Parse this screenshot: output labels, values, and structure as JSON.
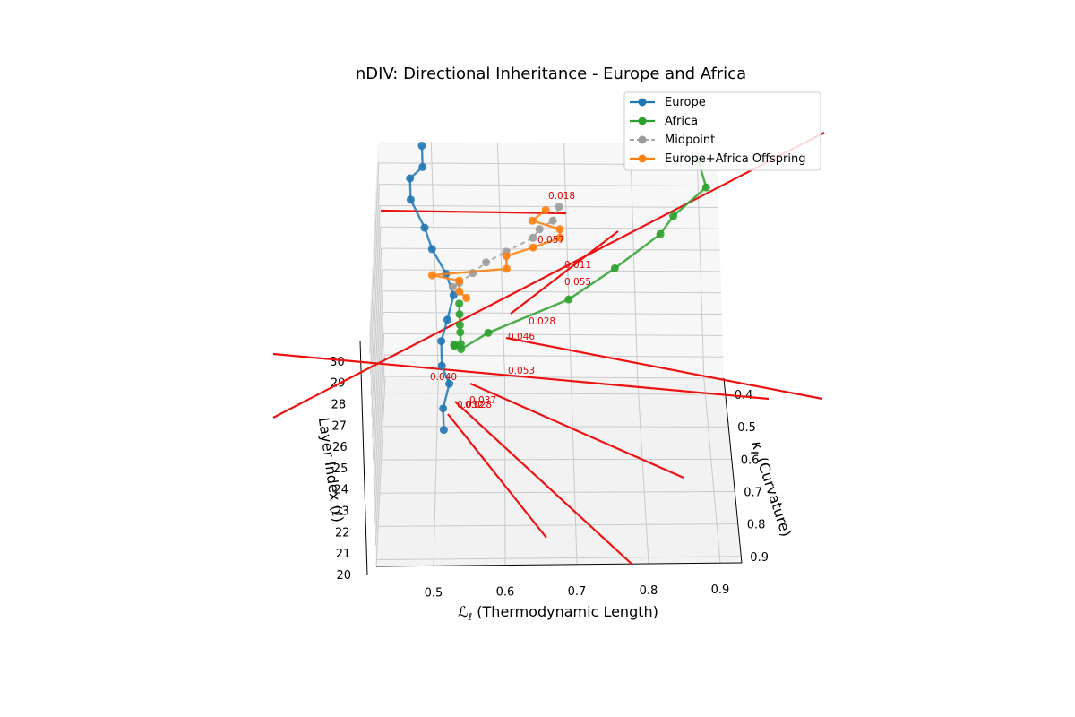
{
  "chart_data": {
    "type": "line",
    "projection": "3d",
    "title": "nDIV: Directional Inheritance - Europe and Africa",
    "xlabel_math": "ℒ",
    "xlabel_sub": "ℓ",
    "xlabel_rest": " (Thermodynamic Length)",
    "ylabel_math": "κ",
    "ylabel_sub": "ℓ",
    "ylabel_rest": " (Curvature)",
    "zlabel": "Layer Index (ℓ)",
    "xlim": [
      0.42,
      0.93
    ],
    "ylim": [
      0.35,
      0.92
    ],
    "zlim": [
      20,
      31
    ],
    "x_ticks": [
      "0.5",
      "0.6",
      "0.7",
      "0.8",
      "0.9"
    ],
    "y_ticks": [
      "0.4",
      "0.5",
      "0.6",
      "0.7",
      "0.8",
      "0.9"
    ],
    "z_ticks": [
      "20",
      "21",
      "22",
      "23",
      "24",
      "25",
      "26",
      "27",
      "28",
      "29",
      "30"
    ],
    "grid": true,
    "legend_position": "top-right",
    "colors": {
      "europe": "#1f77b4",
      "africa": "#2ca02c",
      "midpoint": "#7f7f7f",
      "offspring": "#ff7f0e",
      "arrow": "#ee1111",
      "annotation": "#dd0000"
    },
    "series": [
      {
        "name": "Europe",
        "style": "solid",
        "points": [
          [
            0.51,
            0.51,
            20
          ],
          [
            0.51,
            0.51,
            21
          ],
          [
            0.52,
            0.5,
            22
          ],
          [
            0.51,
            0.51,
            23
          ],
          [
            0.51,
            0.5,
            24
          ],
          [
            0.52,
            0.5,
            25
          ],
          [
            0.53,
            0.49,
            26
          ],
          [
            0.52,
            0.49,
            27
          ],
          [
            0.5,
            0.48,
            28
          ],
          [
            0.49,
            0.48,
            29
          ],
          [
            0.47,
            0.46,
            30
          ],
          [
            0.47,
            0.46,
            31
          ],
          [
            0.49,
            0.49,
            32
          ],
          [
            0.49,
            0.49,
            33
          ]
        ]
      },
      {
        "name": "Africa",
        "style": "solid",
        "points": [
          [
            0.9,
            0.4,
            31
          ],
          [
            0.91,
            0.42,
            30
          ],
          [
            0.86,
            0.41,
            28.5
          ],
          [
            0.84,
            0.4,
            27.5
          ],
          [
            0.77,
            0.44,
            26.5
          ],
          [
            0.7,
            0.47,
            25.5
          ],
          [
            0.58,
            0.52,
            24.7
          ],
          [
            0.54,
            0.55,
            24.4
          ],
          [
            0.53,
            0.54,
            24.4
          ],
          [
            0.53,
            0.55,
            24.6
          ],
          [
            0.54,
            0.56,
            24.8
          ],
          [
            0.54,
            0.57,
            25.5
          ],
          [
            0.54,
            0.58,
            26.0
          ],
          [
            0.54,
            0.58,
            26.5
          ],
          [
            0.54,
            0.58,
            27.0
          ]
        ]
      },
      {
        "name": "Midpoint",
        "style": "dashed",
        "points": [
          [
            0.53,
            0.53,
            27.0
          ],
          [
            0.54,
            0.53,
            27.2
          ],
          [
            0.56,
            0.52,
            27.5
          ],
          [
            0.58,
            0.52,
            28.0
          ],
          [
            0.61,
            0.52,
            28.5
          ],
          [
            0.65,
            0.51,
            29.0
          ],
          [
            0.66,
            0.51,
            29.4
          ],
          [
            0.68,
            0.51,
            29.8
          ],
          [
            0.69,
            0.5,
            30.3
          ]
        ]
      },
      {
        "name": "Europe+Africa Offspring",
        "style": "solid",
        "points": [
          [
            0.55,
            0.55,
            26.8
          ],
          [
            0.54,
            0.55,
            27.1
          ],
          [
            0.54,
            0.53,
            27.3
          ],
          [
            0.5,
            0.52,
            27.4
          ],
          [
            0.61,
            0.52,
            27.7
          ],
          [
            0.61,
            0.52,
            28.3
          ],
          [
            0.65,
            0.52,
            28.7
          ],
          [
            0.69,
            0.51,
            29.0
          ],
          [
            0.69,
            0.51,
            29.4
          ],
          [
            0.65,
            0.51,
            29.8
          ],
          [
            0.67,
            0.51,
            30.3
          ]
        ]
      }
    ],
    "annotations": [
      "0.018",
      "0.057",
      "0.011",
      "0.055",
      "0.028",
      "0.046",
      "0.053",
      "0.040",
      "0.037",
      "0.032",
      "0.028"
    ],
    "legend": [
      "Europe",
      "Africa",
      "Midpoint",
      "Europe+Africa Offspring"
    ]
  }
}
